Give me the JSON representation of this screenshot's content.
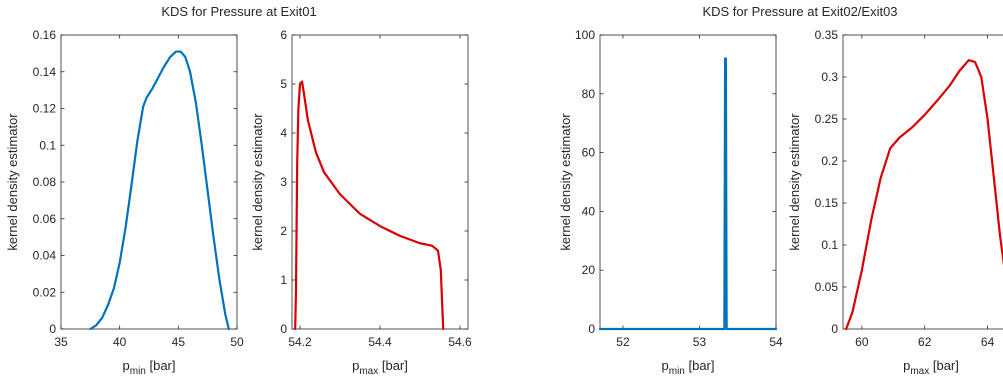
{
  "figure": {
    "group_titles": [
      "KDS for Pressure at Exit01",
      "KDS for Pressure at Exit02/Exit03"
    ]
  },
  "chart_data": [
    {
      "type": "line",
      "group": 0,
      "xlabel": {
        "main": "p",
        "sub": "min",
        "unit": " [bar]"
      },
      "ylabel": "kernel density estimator",
      "xlim": [
        35,
        50
      ],
      "ylim": [
        0,
        0.16
      ],
      "xticks": [
        35,
        40,
        45,
        50
      ],
      "yticks": [
        0,
        0.02,
        0.04,
        0.06,
        0.08,
        0.1,
        0.12,
        0.14,
        0.16
      ],
      "color": "#0072BD",
      "series": [
        {
          "x": [
            37.5,
            38.0,
            38.5,
            39.0,
            39.5,
            40.0,
            40.5,
            41.0,
            41.5,
            42.0,
            42.3,
            42.8,
            43.3,
            43.8,
            44.3,
            44.8,
            45.2,
            45.6,
            46.0,
            46.5,
            47.0,
            47.5,
            48.0,
            48.5,
            49.0,
            49.3
          ],
          "y": [
            0,
            0.002,
            0.006,
            0.013,
            0.022,
            0.036,
            0.055,
            0.078,
            0.102,
            0.121,
            0.126,
            0.131,
            0.137,
            0.143,
            0.148,
            0.151,
            0.151,
            0.148,
            0.14,
            0.123,
            0.1,
            0.075,
            0.05,
            0.027,
            0.008,
            0
          ]
        }
      ]
    },
    {
      "type": "line",
      "group": 0,
      "xlabel": {
        "main": "p",
        "sub": "max",
        "unit": " [bar]"
      },
      "ylabel": "kernel density estimator",
      "xlim": [
        54.18,
        54.62
      ],
      "ylim": [
        0,
        6
      ],
      "xticks": [
        54.2,
        54.4,
        54.6
      ],
      "yticks": [
        0,
        1,
        2,
        3,
        4,
        5,
        6
      ],
      "color": "#D90000",
      "series": [
        {
          "x": [
            54.188,
            54.19,
            54.193,
            54.196,
            54.2,
            54.205,
            54.21,
            54.22,
            54.24,
            54.26,
            54.3,
            54.35,
            54.4,
            54.45,
            54.5,
            54.53,
            54.545,
            54.552,
            54.556,
            54.558
          ],
          "y": [
            0,
            0.8,
            3.4,
            4.5,
            5.0,
            5.05,
            4.8,
            4.25,
            3.6,
            3.2,
            2.75,
            2.35,
            2.1,
            1.9,
            1.75,
            1.7,
            1.6,
            1.2,
            0.4,
            0
          ]
        }
      ]
    },
    {
      "type": "line",
      "group": 1,
      "xlabel": {
        "main": "p",
        "sub": "min",
        "unit": " [bar]"
      },
      "ylabel": "kernel density estimator",
      "xlim": [
        51.7,
        54
      ],
      "ylim": [
        0,
        100
      ],
      "xticks": [
        52,
        53,
        54
      ],
      "yticks": [
        0,
        20,
        40,
        60,
        80,
        100
      ],
      "color": "#0072BD",
      "series": [
        {
          "x": [
            51.7,
            53.325,
            53.335,
            53.345,
            53.355,
            54.0
          ],
          "y": [
            0,
            0,
            92,
            92,
            0,
            0
          ]
        }
      ]
    },
    {
      "type": "line",
      "group": 1,
      "xlabel": {
        "main": "p",
        "sub": "max",
        "unit": " [bar]"
      },
      "ylabel": "kernel density estimator",
      "xlim": [
        59.4,
        65
      ],
      "ylim": [
        0,
        0.35
      ],
      "xticks": [
        60,
        62,
        64
      ],
      "yticks": [
        0,
        0.05,
        0.1,
        0.15,
        0.2,
        0.25,
        0.3,
        0.35
      ],
      "color": "#D90000",
      "series": [
        {
          "x": [
            59.5,
            59.7,
            60.0,
            60.3,
            60.6,
            60.9,
            61.2,
            61.6,
            62.0,
            62.4,
            62.8,
            63.1,
            63.4,
            63.6,
            63.8,
            64.0,
            64.2,
            64.4,
            64.6,
            64.8
          ],
          "y": [
            0,
            0.02,
            0.07,
            0.13,
            0.18,
            0.215,
            0.228,
            0.24,
            0.255,
            0.272,
            0.29,
            0.307,
            0.32,
            0.318,
            0.3,
            0.25,
            0.18,
            0.11,
            0.055,
            0.02
          ]
        }
      ]
    }
  ]
}
